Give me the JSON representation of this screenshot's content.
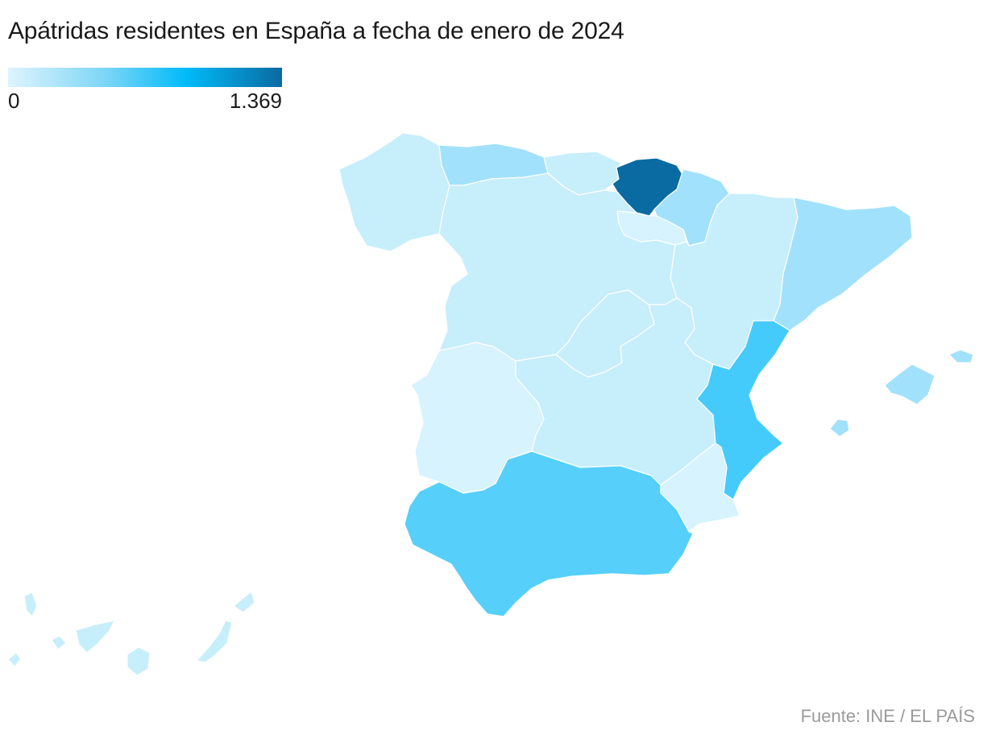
{
  "title": "Apátridas residentes en España a fecha de enero de 2024",
  "legend": {
    "min_label": "0",
    "max_label": "1.369"
  },
  "source": "Fuente: INE / EL PAÍS",
  "colors": {
    "background": "#ffffff",
    "very_low": "#c7eefb",
    "low": "#d7f3fd",
    "medium_low": "#a2e1fb",
    "medium": "#56cffb",
    "high": "#44cbfb",
    "max": "#0a6aa2"
  },
  "regions": [
    {
      "name": "Galicia",
      "level": "very_low"
    },
    {
      "name": "Asturias",
      "level": "medium_low"
    },
    {
      "name": "Cantabria",
      "level": "very_low"
    },
    {
      "name": "País Vasco",
      "level": "max"
    },
    {
      "name": "Navarra",
      "level": "medium_low"
    },
    {
      "name": "La Rioja",
      "level": "low"
    },
    {
      "name": "Aragón",
      "level": "very_low"
    },
    {
      "name": "Cataluña",
      "level": "medium_low"
    },
    {
      "name": "Castilla y León",
      "level": "very_low"
    },
    {
      "name": "Madrid",
      "level": "very_low"
    },
    {
      "name": "Castilla-La Mancha",
      "level": "very_low"
    },
    {
      "name": "Extremadura",
      "level": "low"
    },
    {
      "name": "Comunidad Valenciana",
      "level": "high"
    },
    {
      "name": "Murcia",
      "level": "low"
    },
    {
      "name": "Andalucía",
      "level": "medium"
    },
    {
      "name": "Islas Baleares",
      "level": "medium_low"
    },
    {
      "name": "Canarias",
      "level": "very_low"
    }
  ]
}
